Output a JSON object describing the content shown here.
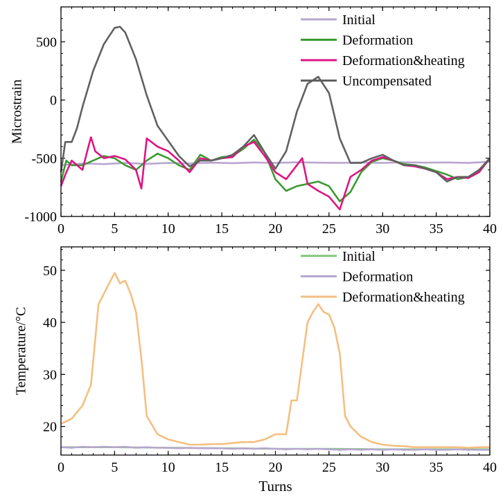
{
  "chart_data": [
    {
      "type": "line",
      "xlabel": "",
      "ylabel": "Microstrain",
      "xlim": [
        0,
        40
      ],
      "ylim": [
        -1000,
        800
      ],
      "xticks": [
        0,
        5,
        10,
        15,
        20,
        25,
        30,
        35,
        40
      ],
      "yticks": [
        -1000,
        -500,
        0,
        500
      ],
      "ytick_labels": [
        "-1000",
        "-500",
        "0",
        "500"
      ],
      "legend_position": "top-right",
      "series": [
        {
          "name": "Initial",
          "color": "#b7a6d0",
          "points": [
            [
              0,
              -560
            ],
            [
              2,
              -545
            ],
            [
              4,
              -550
            ],
            [
              6,
              -540
            ],
            [
              8,
              -548
            ],
            [
              10,
              -540
            ],
            [
              12,
              -545
            ],
            [
              14,
              -538
            ],
            [
              16,
              -542
            ],
            [
              18,
              -536
            ],
            [
              20,
              -540
            ],
            [
              22,
              -535
            ],
            [
              24,
              -538
            ],
            [
              26,
              -540
            ],
            [
              28,
              -536
            ],
            [
              30,
              -540
            ],
            [
              32,
              -535
            ],
            [
              34,
              -538
            ],
            [
              36,
              -536
            ],
            [
              38,
              -540
            ],
            [
              40,
              -530
            ]
          ]
        },
        {
          "name": "Deformation",
          "color": "#3a9b32",
          "points": [
            [
              0,
              -700
            ],
            [
              0.5,
              -520
            ],
            [
              1,
              -560
            ],
            [
              2,
              -560
            ],
            [
              3,
              -520
            ],
            [
              4,
              -480
            ],
            [
              5,
              -500
            ],
            [
              6,
              -560
            ],
            [
              7,
              -600
            ],
            [
              8,
              -520
            ],
            [
              9,
              -460
            ],
            [
              10,
              -500
            ],
            [
              11,
              -560
            ],
            [
              12,
              -600
            ],
            [
              13,
              -470
            ],
            [
              14,
              -520
            ],
            [
              15,
              -490
            ],
            [
              16,
              -480
            ],
            [
              17,
              -420
            ],
            [
              18,
              -340
            ],
            [
              19,
              -450
            ],
            [
              20,
              -680
            ],
            [
              21,
              -780
            ],
            [
              22,
              -740
            ],
            [
              23,
              -720
            ],
            [
              24,
              -700
            ],
            [
              25,
              -740
            ],
            [
              26,
              -870
            ],
            [
              27,
              -790
            ],
            [
              28,
              -620
            ],
            [
              29,
              -530
            ],
            [
              30,
              -500
            ],
            [
              31,
              -520
            ],
            [
              32,
              -550
            ],
            [
              33,
              -560
            ],
            [
              34,
              -580
            ],
            [
              35,
              -610
            ],
            [
              36,
              -640
            ],
            [
              37,
              -680
            ],
            [
              38,
              -660
            ],
            [
              39,
              -600
            ],
            [
              40,
              -510
            ]
          ]
        },
        {
          "name": "Deformation&heating",
          "color": "#de1482",
          "points": [
            [
              0,
              -740
            ],
            [
              0.5,
              -620
            ],
            [
              1,
              -520
            ],
            [
              2,
              -600
            ],
            [
              2.5,
              -420
            ],
            [
              2.8,
              -320
            ],
            [
              3.2,
              -440
            ],
            [
              4,
              -500
            ],
            [
              5,
              -480
            ],
            [
              6,
              -510
            ],
            [
              7,
              -600
            ],
            [
              7.5,
              -760
            ],
            [
              8,
              -330
            ],
            [
              9,
              -400
            ],
            [
              10,
              -440
            ],
            [
              11,
              -520
            ],
            [
              12,
              -620
            ],
            [
              13,
              -500
            ],
            [
              14,
              -520
            ],
            [
              15,
              -500
            ],
            [
              16,
              -490
            ],
            [
              17,
              -400
            ],
            [
              18,
              -360
            ],
            [
              19,
              -480
            ],
            [
              20,
              -620
            ],
            [
              21,
              -680
            ],
            [
              22,
              -560
            ],
            [
              22.5,
              -500
            ],
            [
              23,
              -720
            ],
            [
              24,
              -780
            ],
            [
              25,
              -830
            ],
            [
              26,
              -940
            ],
            [
              27,
              -660
            ],
            [
              28,
              -600
            ],
            [
              29,
              -520
            ],
            [
              30,
              -490
            ],
            [
              31,
              -520
            ],
            [
              32,
              -560
            ],
            [
              33,
              -570
            ],
            [
              34,
              -590
            ],
            [
              35,
              -620
            ],
            [
              36,
              -680
            ],
            [
              37,
              -660
            ],
            [
              38,
              -670
            ],
            [
              39,
              -620
            ],
            [
              40,
              -500
            ]
          ]
        },
        {
          "name": "Uncompensated",
          "color": "#606060",
          "points": [
            [
              0,
              -620
            ],
            [
              0.4,
              -360
            ],
            [
              1,
              -360
            ],
            [
              1.5,
              -240
            ],
            [
              2,
              -60
            ],
            [
              3,
              250
            ],
            [
              4,
              480
            ],
            [
              5,
              620
            ],
            [
              5.5,
              630
            ],
            [
              6,
              580
            ],
            [
              7,
              350
            ],
            [
              8,
              40
            ],
            [
              9,
              -220
            ],
            [
              10,
              -350
            ],
            [
              11,
              -480
            ],
            [
              12,
              -570
            ],
            [
              13,
              -520
            ],
            [
              14,
              -520
            ],
            [
              15,
              -500
            ],
            [
              16,
              -470
            ],
            [
              17,
              -400
            ],
            [
              18,
              -300
            ],
            [
              19,
              -450
            ],
            [
              20,
              -590
            ],
            [
              21,
              -440
            ],
            [
              22,
              -100
            ],
            [
              23,
              140
            ],
            [
              24,
              200
            ],
            [
              25,
              60
            ],
            [
              26,
              -330
            ],
            [
              27,
              -540
            ],
            [
              28,
              -540
            ],
            [
              29,
              -500
            ],
            [
              30,
              -470
            ],
            [
              31,
              -520
            ],
            [
              32,
              -560
            ],
            [
              33,
              -560
            ],
            [
              34,
              -590
            ],
            [
              35,
              -620
            ],
            [
              36,
              -700
            ],
            [
              37,
              -660
            ],
            [
              38,
              -660
            ],
            [
              39,
              -600
            ],
            [
              40,
              -500
            ]
          ]
        }
      ]
    },
    {
      "type": "line",
      "xlabel": "Turns",
      "ylabel": "Temperature/°C",
      "xlim": [
        0,
        40
      ],
      "ylim": [
        14.5,
        54.5
      ],
      "xticks": [
        0,
        5,
        10,
        15,
        20,
        25,
        30,
        35,
        40
      ],
      "yticks": [
        20,
        30,
        40,
        50
      ],
      "legend_position": "top-right",
      "series": [
        {
          "name": "Initial",
          "color": "#80c57b",
          "points": [
            [
              0,
              16.0
            ],
            [
              5,
              16.0
            ],
            [
              10,
              15.9
            ],
            [
              15,
              15.8
            ],
            [
              20,
              15.7
            ],
            [
              25,
              15.7
            ],
            [
              30,
              15.6
            ],
            [
              35,
              15.6
            ],
            [
              40,
              15.6
            ]
          ]
        },
        {
          "name": "Deformation",
          "color": "#b7a6d0",
          "points": [
            [
              0,
              16.0
            ],
            [
              1,
              15.9
            ],
            [
              2,
              16.1
            ],
            [
              3,
              16.0
            ],
            [
              4,
              16.1
            ],
            [
              5,
              16.0
            ],
            [
              6,
              16.1
            ],
            [
              7,
              15.9
            ],
            [
              8,
              16.0
            ],
            [
              9,
              15.9
            ],
            [
              10,
              15.9
            ],
            [
              11,
              15.8
            ],
            [
              12,
              15.9
            ],
            [
              13,
              15.8
            ],
            [
              14,
              15.8
            ],
            [
              15,
              15.8
            ],
            [
              16,
              15.7
            ],
            [
              17,
              15.8
            ],
            [
              18,
              15.7
            ],
            [
              19,
              15.8
            ],
            [
              20,
              15.7
            ],
            [
              21,
              15.6
            ],
            [
              22,
              15.7
            ],
            [
              23,
              15.6
            ],
            [
              24,
              15.7
            ],
            [
              25,
              15.6
            ],
            [
              26,
              15.5
            ],
            [
              27,
              15.6
            ],
            [
              28,
              15.5
            ],
            [
              29,
              15.6
            ],
            [
              30,
              15.5
            ],
            [
              31,
              15.6
            ],
            [
              32,
              15.5
            ],
            [
              33,
              15.5
            ],
            [
              34,
              15.6
            ],
            [
              35,
              15.5
            ],
            [
              36,
              15.5
            ],
            [
              37,
              15.6
            ],
            [
              38,
              15.5
            ],
            [
              39,
              15.5
            ],
            [
              40,
              15.5
            ]
          ]
        },
        {
          "name": "Deformation&heating",
          "color": "#f4bf80",
          "points": [
            [
              0,
              20.5
            ],
            [
              1,
              21.5
            ],
            [
              2,
              24.0
            ],
            [
              2.8,
              28.0
            ],
            [
              3.5,
              43.5
            ],
            [
              4,
              45.5
            ],
            [
              4.5,
              47.5
            ],
            [
              5,
              49.5
            ],
            [
              5.5,
              47.5
            ],
            [
              6,
              48.0
            ],
            [
              6.5,
              45.5
            ],
            [
              7,
              42.0
            ],
            [
              7.5,
              33.0
            ],
            [
              8,
              22.0
            ],
            [
              9,
              18.5
            ],
            [
              10,
              17.5
            ],
            [
              11,
              17.0
            ],
            [
              12,
              16.5
            ],
            [
              13,
              16.5
            ],
            [
              14,
              16.6
            ],
            [
              15,
              16.6
            ],
            [
              16,
              16.8
            ],
            [
              17,
              17.0
            ],
            [
              18,
              17.0
            ],
            [
              19,
              17.5
            ],
            [
              20,
              18.5
            ],
            [
              21,
              18.5
            ],
            [
              21.5,
              25.0
            ],
            [
              22,
              25.0
            ],
            [
              23,
              40.0
            ],
            [
              23.5,
              42.0
            ],
            [
              24,
              43.5
            ],
            [
              24.5,
              42.0
            ],
            [
              25,
              41.5
            ],
            [
              25.5,
              39.0
            ],
            [
              26,
              34.0
            ],
            [
              26.5,
              22.0
            ],
            [
              27,
              20.0
            ],
            [
              28,
              18.0
            ],
            [
              29,
              17.0
            ],
            [
              30,
              16.5
            ],
            [
              31,
              16.3
            ],
            [
              32,
              16.2
            ],
            [
              33,
              16.0
            ],
            [
              34,
              16.0
            ],
            [
              35,
              16.0
            ],
            [
              36,
              16.0
            ],
            [
              37,
              16.0
            ],
            [
              38,
              15.9
            ],
            [
              39,
              16.0
            ],
            [
              40,
              16.0
            ]
          ]
        }
      ]
    }
  ]
}
